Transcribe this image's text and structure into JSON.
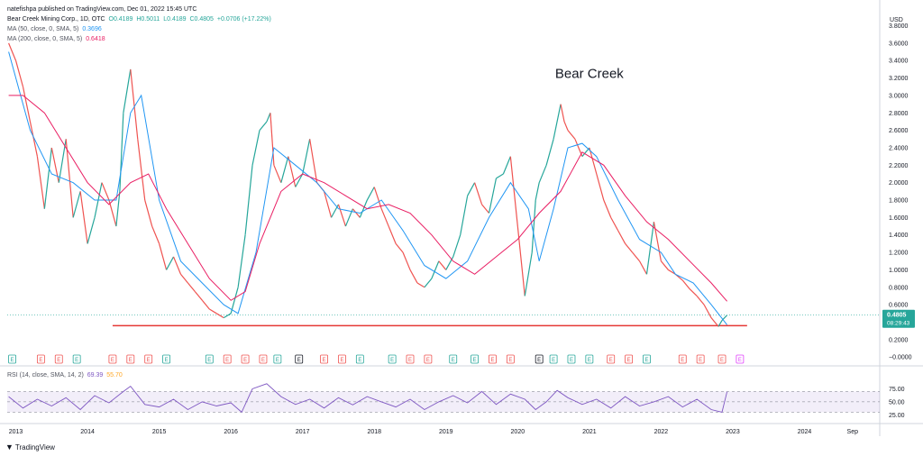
{
  "header": {
    "published": "natefishpa published on TradingView.com, Dec 01, 2022 15:45 UTC",
    "symbol": "Bear Creek Mining Corp., 1D, OTC",
    "ohlc": {
      "O": "O0.4189",
      "H": "H0.5011",
      "L": "L0.4189",
      "C": "C0.4805",
      "chg": "+0.0706 (+17.22%)"
    },
    "ma50_label": "MA (50, close, 0, SMA, 5)",
    "ma50_value": "0.3696",
    "ma200_label": "MA (200, close, 0, SMA, 5)",
    "ma200_value": "0.6418"
  },
  "rsi_header": {
    "label": "RSI (14, close, SMA, 14, 2)",
    "value1": "69.39",
    "value2": "55.70"
  },
  "brand": "TradingView",
  "colors": {
    "up": "#26a69a",
    "down": "#ef5350",
    "ma50": "#2196f3",
    "ma200": "#e91e63",
    "rsi": "#7e57c2",
    "rsi_ma": "#ffa726",
    "hline": "#e53935",
    "last_price_bg": "#26a69a"
  },
  "chart_data": {
    "type": "line",
    "title": "Bear Creek",
    "currency_label": "USD",
    "y_ticks": [
      "3.8000",
      "3.6000",
      "3.4000",
      "3.2000",
      "3.0000",
      "2.8000",
      "2.6000",
      "2.4000",
      "2.2000",
      "2.0000",
      "1.8000",
      "1.6000",
      "1.4000",
      "1.2000",
      "1.0000",
      "0.8000",
      "0.6000",
      "0.4000",
      "0.2000",
      "−0.0000"
    ],
    "y_tick_values": [
      3.8,
      3.6,
      3.4,
      3.2,
      3.0,
      2.8,
      2.6,
      2.4,
      2.2,
      2.0,
      1.8,
      1.6,
      1.4,
      1.2,
      1.0,
      0.8,
      0.6,
      0.4,
      0.2,
      0.0
    ],
    "ylim": [
      -0.06,
      3.95
    ],
    "x_ticks": [
      "2013",
      "2014",
      "2015",
      "2016",
      "2017",
      "2018",
      "2019",
      "2020",
      "2021",
      "2022",
      "2023",
      "2024",
      "Sep"
    ],
    "x_tick_values": [
      2013.0,
      2014.0,
      2015.0,
      2016.0,
      2017.0,
      2018.0,
      2019.0,
      2020.0,
      2021.0,
      2022.0,
      2023.0,
      2024.0,
      2024.67
    ],
    "xlim": [
      2012.88,
      2025.05
    ],
    "last_price": "0.4805",
    "countdown": "08:29:43",
    "horizontal_line_y": 0.36,
    "horizontal_line_x": [
      2014.35,
      2023.2
    ],
    "series": [
      {
        "name": "Price",
        "x": [
          2012.9,
          2013.0,
          2013.1,
          2013.2,
          2013.3,
          2013.4,
          2013.5,
          2013.6,
          2013.7,
          2013.8,
          2013.9,
          2014.0,
          2014.1,
          2014.2,
          2014.3,
          2014.4,
          2014.45,
          2014.5,
          2014.6,
          2014.7,
          2014.8,
          2014.9,
          2015.0,
          2015.1,
          2015.2,
          2015.3,
          2015.4,
          2015.5,
          2015.6,
          2015.7,
          2015.8,
          2015.9,
          2016.0,
          2016.1,
          2016.2,
          2016.3,
          2016.4,
          2016.5,
          2016.55,
          2016.6,
          2016.7,
          2016.8,
          2016.9,
          2017.0,
          2017.1,
          2017.2,
          2017.3,
          2017.4,
          2017.5,
          2017.6,
          2017.7,
          2017.8,
          2017.9,
          2018.0,
          2018.1,
          2018.2,
          2018.3,
          2018.4,
          2018.5,
          2018.6,
          2018.7,
          2018.8,
          2018.9,
          2019.0,
          2019.1,
          2019.2,
          2019.3,
          2019.4,
          2019.5,
          2019.6,
          2019.7,
          2019.8,
          2019.9,
          2020.0,
          2020.1,
          2020.2,
          2020.25,
          2020.3,
          2020.4,
          2020.5,
          2020.6,
          2020.65,
          2020.7,
          2020.8,
          2020.9,
          2021.0,
          2021.1,
          2021.2,
          2021.3,
          2021.4,
          2021.5,
          2021.6,
          2021.7,
          2021.8,
          2021.9,
          2022.0,
          2022.1,
          2022.2,
          2022.3,
          2022.4,
          2022.5,
          2022.6,
          2022.7,
          2022.8,
          2022.85,
          2022.92
        ],
        "y": [
          3.6,
          3.4,
          3.1,
          2.7,
          2.3,
          1.7,
          2.4,
          2.0,
          2.5,
          1.6,
          1.9,
          1.3,
          1.6,
          2.0,
          1.8,
          1.5,
          1.9,
          2.8,
          3.3,
          2.5,
          1.8,
          1.5,
          1.3,
          1.0,
          1.15,
          0.95,
          0.85,
          0.75,
          0.65,
          0.55,
          0.5,
          0.45,
          0.5,
          0.8,
          1.4,
          2.2,
          2.6,
          2.7,
          2.8,
          2.2,
          2.0,
          2.3,
          1.95,
          2.1,
          2.5,
          2.0,
          1.9,
          1.6,
          1.75,
          1.5,
          1.7,
          1.6,
          1.8,
          1.95,
          1.7,
          1.5,
          1.3,
          1.2,
          1.0,
          0.85,
          0.8,
          0.9,
          1.1,
          1.0,
          1.15,
          1.4,
          1.85,
          2.0,
          1.75,
          1.65,
          2.05,
          2.1,
          2.3,
          1.5,
          0.7,
          1.2,
          1.8,
          2.0,
          2.2,
          2.5,
          2.9,
          2.7,
          2.6,
          2.5,
          2.3,
          2.4,
          2.1,
          1.8,
          1.6,
          1.45,
          1.3,
          1.2,
          1.1,
          0.95,
          1.55,
          1.1,
          1.0,
          0.95,
          0.88,
          0.78,
          0.7,
          0.6,
          0.45,
          0.35,
          0.42,
          0.48
        ]
      },
      {
        "name": "MA (50, close, 0, SMA, 5)",
        "x": [
          2012.9,
          2013.2,
          2013.5,
          2013.8,
          2014.1,
          2014.4,
          2014.6,
          2014.75,
          2015.0,
          2015.3,
          2015.6,
          2015.9,
          2016.1,
          2016.35,
          2016.6,
          2016.9,
          2017.2,
          2017.5,
          2017.8,
          2018.1,
          2018.4,
          2018.7,
          2019.0,
          2019.3,
          2019.6,
          2019.9,
          2020.15,
          2020.3,
          2020.5,
          2020.7,
          2020.9,
          2021.1,
          2021.4,
          2021.7,
          2022.0,
          2022.2,
          2022.45,
          2022.7,
          2022.92
        ],
        "y": [
          3.5,
          2.6,
          2.1,
          2.0,
          1.8,
          1.8,
          2.8,
          3.0,
          1.8,
          1.1,
          0.85,
          0.6,
          0.5,
          1.2,
          2.4,
          2.2,
          2.0,
          1.7,
          1.65,
          1.8,
          1.45,
          1.05,
          0.9,
          1.1,
          1.6,
          2.0,
          1.7,
          1.1,
          1.7,
          2.4,
          2.45,
          2.3,
          1.8,
          1.35,
          1.2,
          0.95,
          0.85,
          0.6,
          0.37
        ]
      },
      {
        "name": "MA (200, close, 0, SMA, 5)",
        "x": [
          2012.9,
          2013.1,
          2013.4,
          2013.7,
          2014.0,
          2014.3,
          2014.6,
          2014.85,
          2015.1,
          2015.4,
          2015.7,
          2016.0,
          2016.2,
          2016.4,
          2016.7,
          2017.0,
          2017.3,
          2017.6,
          2017.9,
          2018.2,
          2018.5,
          2018.8,
          2019.1,
          2019.4,
          2019.7,
          2020.0,
          2020.3,
          2020.6,
          2020.9,
          2021.2,
          2021.5,
          2021.8,
          2022.1,
          2022.4,
          2022.7,
          2022.92
        ],
        "y": [
          3.0,
          3.0,
          2.8,
          2.4,
          2.0,
          1.75,
          2.0,
          2.1,
          1.7,
          1.3,
          0.9,
          0.65,
          0.75,
          1.3,
          1.9,
          2.1,
          2.0,
          1.85,
          1.7,
          1.75,
          1.65,
          1.4,
          1.1,
          0.95,
          1.15,
          1.35,
          1.65,
          1.9,
          2.35,
          2.2,
          1.85,
          1.55,
          1.35,
          1.1,
          0.85,
          0.64
        ]
      }
    ],
    "events": [
      {
        "x": 2012.95,
        "label": "E",
        "kind": "earn"
      },
      {
        "x": 2013.35,
        "label": "E",
        "kind": "div"
      },
      {
        "x": 2013.6,
        "label": "E",
        "kind": "div"
      },
      {
        "x": 2013.85,
        "label": "E",
        "kind": "earn"
      },
      {
        "x": 2014.35,
        "label": "E",
        "kind": "div"
      },
      {
        "x": 2014.6,
        "label": "E",
        "kind": "div"
      },
      {
        "x": 2014.85,
        "label": "E",
        "kind": "div"
      },
      {
        "x": 2015.1,
        "label": "E",
        "kind": "earn"
      },
      {
        "x": 2015.7,
        "label": "E",
        "kind": "earn"
      },
      {
        "x": 2015.95,
        "label": "E",
        "kind": "div"
      },
      {
        "x": 2016.2,
        "label": "E",
        "kind": "div"
      },
      {
        "x": 2016.45,
        "label": "E",
        "kind": "div"
      },
      {
        "x": 2016.65,
        "label": "E",
        "kind": "earn"
      },
      {
        "x": 2016.95,
        "label": "E",
        "kind": "neutral"
      },
      {
        "x": 2017.3,
        "label": "E",
        "kind": "div"
      },
      {
        "x": 2017.55,
        "label": "E",
        "kind": "div"
      },
      {
        "x": 2017.8,
        "label": "E",
        "kind": "earn"
      },
      {
        "x": 2018.25,
        "label": "E",
        "kind": "earn"
      },
      {
        "x": 2018.5,
        "label": "E",
        "kind": "div"
      },
      {
        "x": 2018.75,
        "label": "E",
        "kind": "div"
      },
      {
        "x": 2019.1,
        "label": "E",
        "kind": "earn"
      },
      {
        "x": 2019.4,
        "label": "E",
        "kind": "earn"
      },
      {
        "x": 2019.65,
        "label": "E",
        "kind": "div"
      },
      {
        "x": 2019.9,
        "label": "E",
        "kind": "div"
      },
      {
        "x": 2020.3,
        "label": "E",
        "kind": "neutral"
      },
      {
        "x": 2020.5,
        "label": "E",
        "kind": "earn"
      },
      {
        "x": 2020.75,
        "label": "E",
        "kind": "earn"
      },
      {
        "x": 2021.0,
        "label": "E",
        "kind": "earn"
      },
      {
        "x": 2021.3,
        "label": "E",
        "kind": "div"
      },
      {
        "x": 2021.55,
        "label": "E",
        "kind": "div"
      },
      {
        "x": 2021.8,
        "label": "E",
        "kind": "earn"
      },
      {
        "x": 2022.3,
        "label": "E",
        "kind": "div"
      },
      {
        "x": 2022.55,
        "label": "E",
        "kind": "div"
      },
      {
        "x": 2022.85,
        "label": "E",
        "kind": "div"
      },
      {
        "x": 2023.1,
        "label": "E",
        "kind": "future"
      }
    ],
    "rsi": {
      "y_ticks": [
        "75.00",
        "50.00",
        "25.00"
      ],
      "y_tick_values": [
        75,
        50,
        25
      ],
      "ylim": [
        15,
        95
      ],
      "band": [
        30,
        70
      ],
      "x": [
        2012.9,
        2013.1,
        2013.3,
        2013.5,
        2013.7,
        2013.9,
        2014.1,
        2014.3,
        2014.5,
        2014.6,
        2014.8,
        2015.0,
        2015.2,
        2015.4,
        2015.6,
        2015.8,
        2016.0,
        2016.15,
        2016.3,
        2016.5,
        2016.7,
        2016.9,
        2017.1,
        2017.3,
        2017.5,
        2017.7,
        2017.9,
        2018.1,
        2018.3,
        2018.5,
        2018.7,
        2018.9,
        2019.1,
        2019.3,
        2019.5,
        2019.7,
        2019.9,
        2020.1,
        2020.25,
        2020.4,
        2020.55,
        2020.7,
        2020.9,
        2021.1,
        2021.3,
        2021.5,
        2021.7,
        2021.9,
        2022.1,
        2022.3,
        2022.5,
        2022.7,
        2022.85,
        2022.92
      ],
      "y": [
        60,
        38,
        55,
        42,
        58,
        35,
        62,
        48,
        70,
        80,
        45,
        40,
        55,
        35,
        50,
        42,
        48,
        30,
        75,
        85,
        60,
        45,
        55,
        38,
        58,
        44,
        60,
        50,
        40,
        55,
        35,
        50,
        62,
        48,
        70,
        45,
        65,
        55,
        35,
        50,
        72,
        58,
        45,
        55,
        38,
        60,
        42,
        50,
        60,
        40,
        55,
        35,
        30,
        69.39
      ]
    }
  }
}
